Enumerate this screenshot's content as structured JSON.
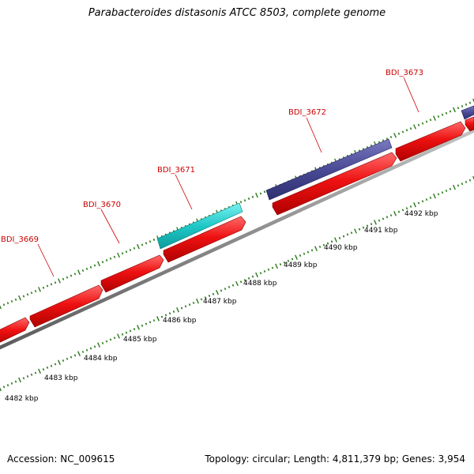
{
  "title": "Parabacteroides distasonis ATCC 8503, complete genome",
  "footer": {
    "accession": "Accession: NC_009615",
    "summary": "Topology: circular; Length: 4,811,379 bp; Genes: 3,954"
  },
  "colors": {
    "forward_cds": "#ee1111",
    "reverse_gene_purple": "#4a4a96",
    "reverse_gene_cyan": "#1fc8c8",
    "backbone": "#8a8a8a",
    "ticks": "#2a7a1a",
    "label_red": "#cc0000"
  },
  "gene_labels": [
    {
      "name": "BDI_3669"
    },
    {
      "name": "BDI_3670"
    },
    {
      "name": "BDI_3671"
    },
    {
      "name": "BDI_3672"
    },
    {
      "name": "BDI_3673"
    }
  ],
  "kbp_labels": [
    "4482 kbp",
    "4483 kbp",
    "4484 kbp",
    "4485 kbp",
    "4486 kbp",
    "4487 kbp",
    "4488 kbp",
    "4489 kbp",
    "4490 kbp",
    "4491 kbp",
    "4492 kbp"
  ]
}
